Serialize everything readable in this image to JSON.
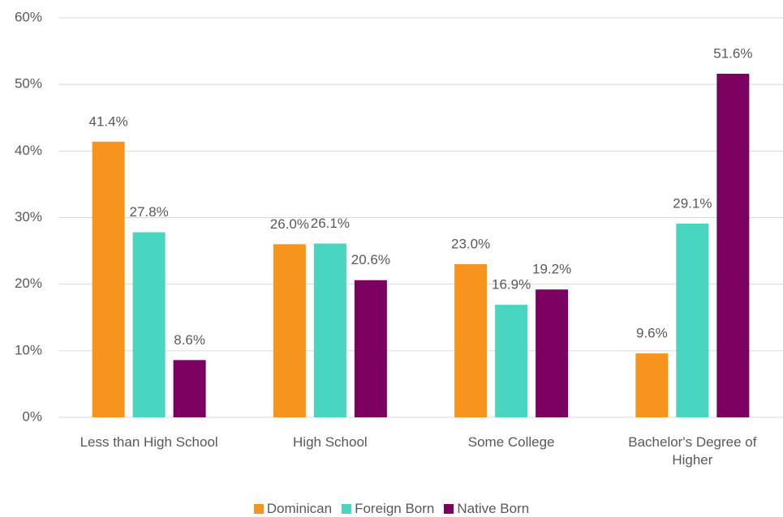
{
  "chart_data": {
    "type": "bar",
    "categories": [
      "Less than High School",
      "High School",
      "Some College",
      "Bachelor's  Degree of Higher"
    ],
    "series": [
      {
        "name": "Dominican",
        "color": "#f7941d",
        "values": [
          41.4,
          26.0,
          23.0,
          9.6
        ],
        "value_labels": [
          "41.4%",
          "26.0%",
          "23.0%",
          "9.6%"
        ]
      },
      {
        "name": "Foreign Born",
        "color": "#48d6c0",
        "values": [
          27.8,
          26.1,
          16.9,
          29.1
        ],
        "value_labels": [
          "27.8%",
          "26.1%",
          "16.9%",
          "29.1%"
        ]
      },
      {
        "name": "Native Born",
        "color": "#7b0060",
        "values": [
          8.6,
          20.6,
          19.2,
          51.6
        ],
        "value_labels": [
          "8.6%",
          "20.6%",
          "19.2%",
          "51.6%"
        ]
      }
    ],
    "ylim": [
      0,
      60
    ],
    "yticks": [
      {
        "value": 0,
        "label": "0%"
      },
      {
        "value": 10,
        "label": "10%"
      },
      {
        "value": 20,
        "label": "20%"
      },
      {
        "value": 30,
        "label": "30%"
      },
      {
        "value": 40,
        "label": "40%"
      },
      {
        "value": 50,
        "label": "50%"
      },
      {
        "value": 60,
        "label": "60%"
      }
    ],
    "grid": true,
    "legend": "bottom"
  }
}
